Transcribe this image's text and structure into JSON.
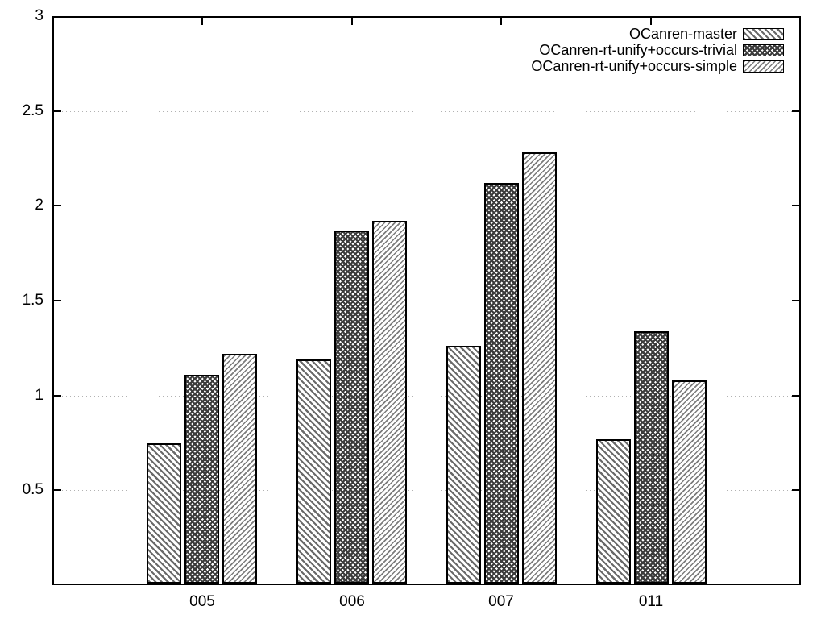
{
  "chart_data": {
    "type": "bar",
    "title": "",
    "xlabel": "",
    "ylabel": "",
    "categories": [
      "005",
      "006",
      "007",
      "011"
    ],
    "series": [
      {
        "name": "OCanren-master",
        "pattern": "hatch-backslash",
        "values": [
          0.75,
          1.19,
          1.26,
          0.77
        ]
      },
      {
        "name": "OCanren-rt-unify+occurs-trivial",
        "pattern": "hatch-cross",
        "values": [
          1.11,
          1.87,
          2.12,
          1.34
        ]
      },
      {
        "name": "OCanren-rt-unify+occurs-simple",
        "pattern": "hatch-slash",
        "values": [
          1.22,
          1.92,
          2.28,
          1.08
        ]
      }
    ],
    "ylim": [
      0,
      3
    ],
    "yticks": [
      0.5,
      1,
      1.5,
      2,
      2.5,
      3
    ],
    "ytick_labels": [
      "0.5",
      "1",
      "1.5",
      "2",
      "2.5",
      "3"
    ],
    "grid": "horizontal dotted lines at y ticks",
    "legend_position": "top-right inside plot",
    "colors": {
      "frame": "#000000",
      "grid_dots": "#b2b2b2",
      "bar_fill": "#ffffff",
      "bar_border": "#000000",
      "hatch_backslash": "#6a6a6a",
      "hatch_cross": "#3c3c3c",
      "hatch_slash": "#7c7c7c",
      "text": "#000000"
    }
  }
}
